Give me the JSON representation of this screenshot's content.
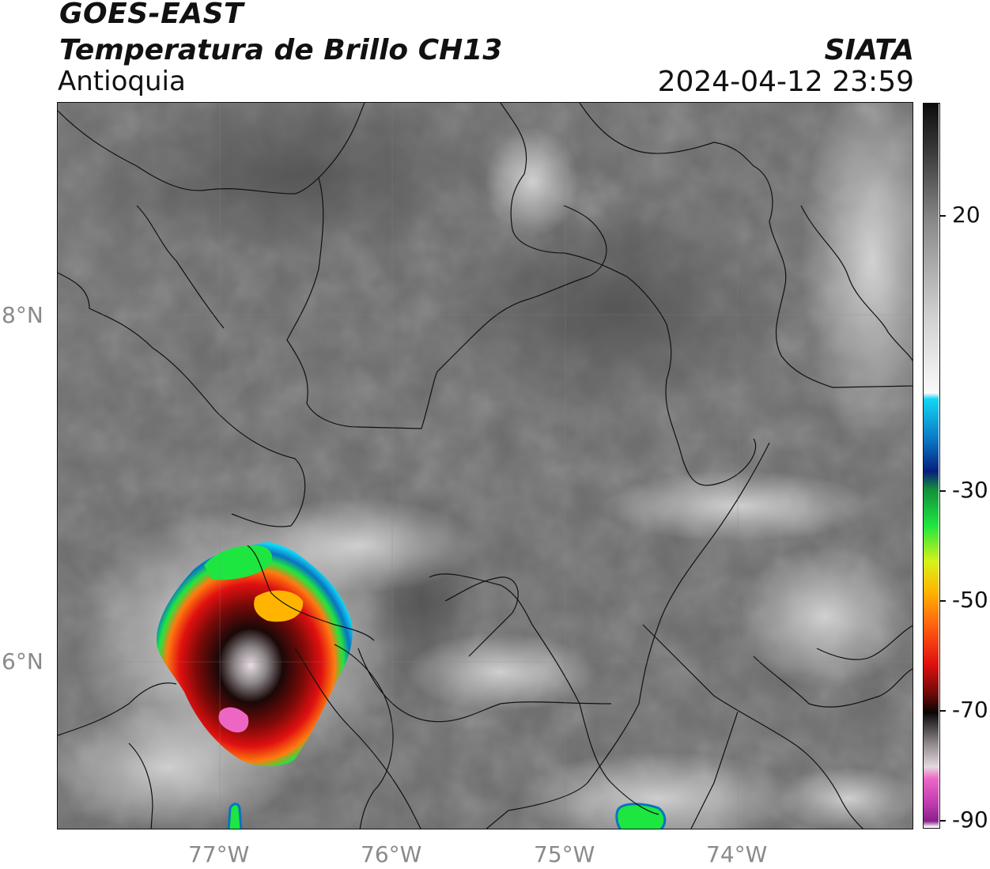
{
  "header": {
    "satellite": "GOES-EAST",
    "product": "Temperatura de Brillo CH13",
    "region": "Antioquia",
    "agency": "SIATA",
    "timestamp": "2024-04-12 23:59"
  },
  "axes": {
    "longitude_ticks": [
      "77°W",
      "76°W",
      "75°W",
      "74°W"
    ],
    "latitude_ticks": [
      "8°N",
      "6°N"
    ]
  },
  "colorbar": {
    "ticks": [
      "20",
      "-30",
      "-50",
      "-70",
      "-90"
    ],
    "stops": [
      {
        "value": 30,
        "color": "#0d0d0d"
      },
      {
        "value": 22,
        "color": "#3a3a3a"
      },
      {
        "value": 10,
        "color": "#8c8c8c"
      },
      {
        "value": -5,
        "color": "#cfcfcf"
      },
      {
        "value": -18,
        "color": "#fafafa"
      },
      {
        "value": -19,
        "color": "#12d6f5"
      },
      {
        "value": -26,
        "color": "#0a73c2"
      },
      {
        "value": -31,
        "color": "#071f7d"
      },
      {
        "value": -34,
        "color": "#138f3a"
      },
      {
        "value": -40,
        "color": "#1ee640"
      },
      {
        "value": -46,
        "color": "#d8f218"
      },
      {
        "value": -51,
        "color": "#ffb400"
      },
      {
        "value": -57,
        "color": "#ff5a10"
      },
      {
        "value": -63,
        "color": "#e01010"
      },
      {
        "value": -68,
        "color": "#6a0a08"
      },
      {
        "value": -71,
        "color": "#0a0606"
      },
      {
        "value": -76,
        "color": "#8a8587"
      },
      {
        "value": -80,
        "color": "#e4d8df"
      },
      {
        "value": -82,
        "color": "#ee66c4"
      },
      {
        "value": -86,
        "color": "#c03cb0"
      },
      {
        "value": -89,
        "color": "#8a208a"
      },
      {
        "value": -90,
        "color": "#ffffff"
      }
    ]
  }
}
